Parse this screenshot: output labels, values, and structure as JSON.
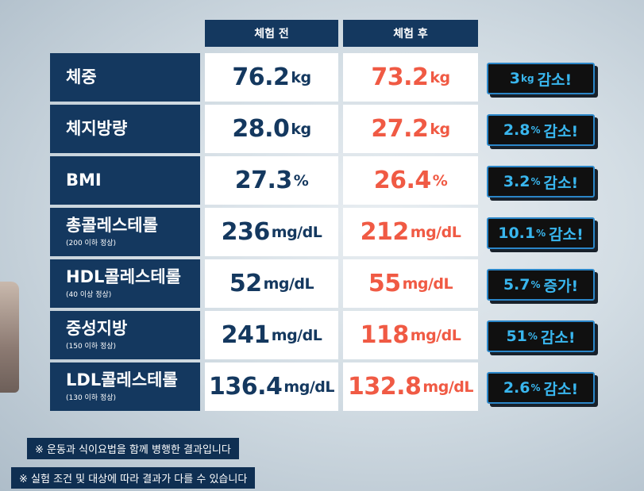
{
  "columns": {
    "before": "체험 전",
    "after": "체험 후"
  },
  "rows": [
    {
      "label": "체중",
      "sub": "",
      "before": {
        "num": "76.2",
        "unit": "kg"
      },
      "after": {
        "num": "73.2",
        "unit": "kg"
      },
      "change": {
        "num": "3",
        "unit": "kg",
        "word": "감소!"
      }
    },
    {
      "label": "체지방량",
      "sub": "",
      "before": {
        "num": "28.0",
        "unit": "kg"
      },
      "after": {
        "num": "27.2",
        "unit": "kg"
      },
      "change": {
        "num": "2.8",
        "unit": "%",
        "word": "감소!"
      }
    },
    {
      "label": "BMI",
      "sub": "",
      "before": {
        "num": "27.3",
        "unit": "%"
      },
      "after": {
        "num": "26.4",
        "unit": "%"
      },
      "change": {
        "num": "3.2",
        "unit": "%",
        "word": "감소!"
      }
    },
    {
      "label": "총콜레스테롤",
      "sub": "(200 이하 정상)",
      "before": {
        "num": "236",
        "unit": "mg/dL"
      },
      "after": {
        "num": "212",
        "unit": "mg/dL"
      },
      "change": {
        "num": "10.1",
        "unit": "%",
        "word": "감소!"
      }
    },
    {
      "label": "HDL콜레스테롤",
      "sub": "(40 이상 정상)",
      "before": {
        "num": "52",
        "unit": "mg/dL"
      },
      "after": {
        "num": "55",
        "unit": "mg/dL"
      },
      "change": {
        "num": "5.7",
        "unit": "%",
        "word": "증가!"
      }
    },
    {
      "label": "중성지방",
      "sub": "(150 이하 정상)",
      "before": {
        "num": "241",
        "unit": "mg/dL"
      },
      "after": {
        "num": "118",
        "unit": "mg/dL"
      },
      "change": {
        "num": "51",
        "unit": "%",
        "word": "감소!"
      }
    },
    {
      "label": "LDL콜레스테롤",
      "sub": "(130 이하 정상)",
      "before": {
        "num": "136.4",
        "unit": "mg/dL"
      },
      "after": {
        "num": "132.8",
        "unit": "mg/dL"
      },
      "change": {
        "num": "2.6",
        "unit": "%",
        "word": "감소!"
      }
    }
  ],
  "notes": [
    "※ 운동과 식이요법을 함께 병행한 결과입니다",
    "※ 실험 조건 및 대상에 따라 결과가 다를 수 있습니다"
  ],
  "colors": {
    "navy": "#14385f",
    "after_red": "#f05a44",
    "badge_blue": "#39b6ee",
    "badge_bg": "#101010"
  }
}
